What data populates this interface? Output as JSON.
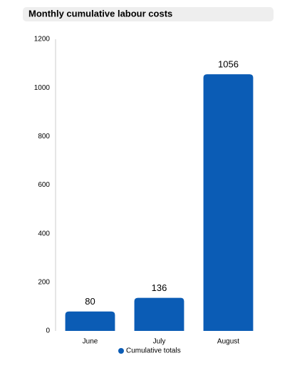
{
  "chart_data": {
    "type": "bar",
    "title": "Monthly cumulative labour costs",
    "categories": [
      "June",
      "July",
      "August"
    ],
    "series": [
      {
        "name": "Cumulative totals",
        "color": "#0b5cb5",
        "values": [
          80,
          136,
          1056
        ]
      }
    ],
    "ylim": [
      0,
      1200
    ],
    "yticks": [
      0,
      200,
      400,
      600,
      800,
      1000,
      1200
    ]
  }
}
